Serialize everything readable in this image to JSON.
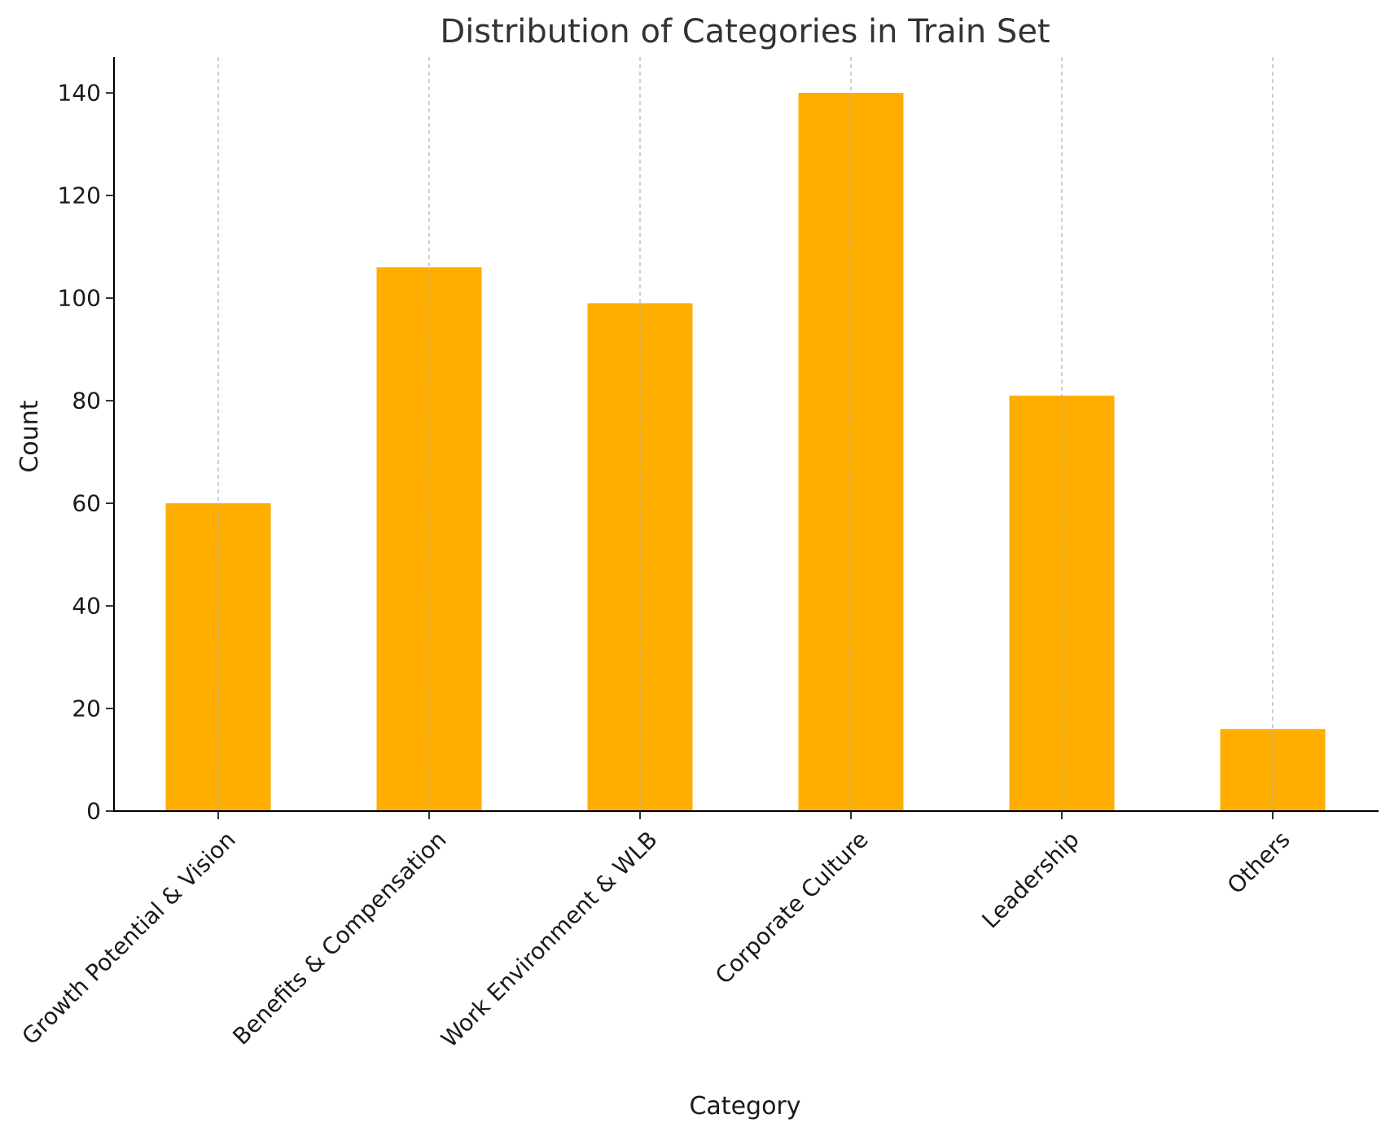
{
  "chart_data": {
    "type": "bar",
    "title": "Distribution of Categories in Train Set",
    "xlabel": "Category",
    "ylabel": "Count",
    "categories": [
      "Growth Potential & Vision",
      "Benefits & Compensation",
      "Work Environment & WLB",
      "Corporate Culture",
      "Leadership",
      "Others"
    ],
    "values": [
      60,
      106,
      99,
      140,
      81,
      16
    ],
    "ylim": [
      0,
      147
    ],
    "yticks": [
      0,
      20,
      40,
      60,
      80,
      100,
      120,
      140
    ],
    "bar_color": "#FFAE00",
    "grid": "vertical dashed at category positions",
    "legend": "none"
  }
}
